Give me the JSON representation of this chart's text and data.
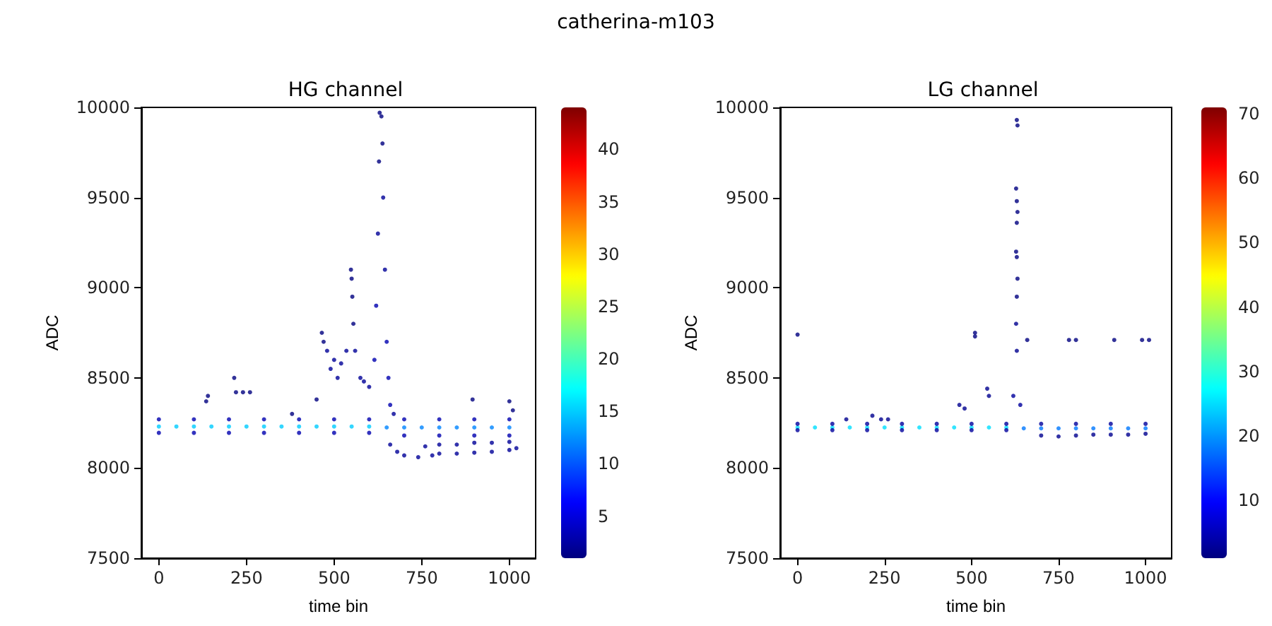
{
  "chart_data": [
    {
      "type": "scatter",
      "title": "HG channel",
      "annotations": [
        "catherina-m103"
      ],
      "xlabel": "time bin",
      "ylabel": "ADC",
      "xlim": [
        -50,
        1075
      ],
      "ylim": [
        7500,
        10000
      ],
      "xticks": [
        0,
        250,
        500,
        750,
        1000
      ],
      "yticks": [
        7500,
        8000,
        8500,
        9000,
        9500,
        10000
      ],
      "grid": false,
      "marker": "circle",
      "clim": [
        1,
        44
      ],
      "cticks": [
        5,
        10,
        15,
        20,
        25,
        30,
        35,
        40
      ],
      "x": [
        0,
        50,
        100,
        150,
        200,
        250,
        300,
        350,
        400,
        450,
        500,
        550,
        600,
        650,
        700,
        750,
        800,
        850,
        900,
        950,
        1000,
        0,
        100,
        200,
        300,
        400,
        500,
        600,
        700,
        800,
        900,
        1000,
        0,
        100,
        200,
        300,
        400,
        500,
        600,
        700,
        800,
        900,
        1000,
        660,
        680,
        700,
        740,
        780,
        800,
        850,
        900,
        950,
        1000,
        1020,
        760,
        800,
        850,
        900,
        950,
        1000,
        615,
        620,
        625,
        628,
        630,
        635,
        638,
        640,
        645,
        650,
        655,
        660,
        670,
        140,
        135,
        215,
        220,
        240,
        260,
        380,
        450,
        465,
        470,
        480,
        490,
        500,
        510,
        520,
        535,
        548,
        550,
        552,
        555,
        560,
        575,
        585,
        600,
        895,
        1000,
        1010
      ],
      "values": [
        8230,
        8230,
        8230,
        8230,
        8230,
        8230,
        8230,
        8230,
        8230,
        8230,
        8230,
        8230,
        8230,
        8225,
        8225,
        8225,
        8225,
        8225,
        8225,
        8225,
        8225,
        8270,
        8270,
        8270,
        8270,
        8270,
        8270,
        8270,
        8270,
        8270,
        8270,
        8270,
        8195,
        8195,
        8195,
        8195,
        8195,
        8195,
        8195,
        8180,
        8180,
        8180,
        8180,
        8130,
        8090,
        8070,
        8060,
        8070,
        8080,
        8080,
        8085,
        8090,
        8100,
        8110,
        8120,
        8130,
        8130,
        8140,
        8140,
        8145,
        8600,
        8900,
        9300,
        9700,
        9970,
        9950,
        9800,
        9500,
        9100,
        8700,
        8500,
        8350,
        8300,
        8400,
        8370,
        8500,
        8420,
        8420,
        8420,
        8300,
        8380,
        8750,
        8700,
        8650,
        8550,
        8600,
        8500,
        8580,
        8650,
        9100,
        9050,
        8950,
        8800,
        8650,
        8500,
        8480,
        8450,
        8380,
        8370,
        8320
      ],
      "cvalues": [
        15,
        15,
        15,
        15,
        15,
        15,
        15,
        15,
        15,
        15,
        15,
        15,
        15,
        12,
        12,
        12,
        12,
        12,
        12,
        12,
        12,
        3,
        3,
        3,
        3,
        3,
        3,
        3,
        3,
        3,
        3,
        3,
        3,
        3,
        3,
        3,
        3,
        3,
        3,
        3,
        3,
        3,
        3,
        2,
        2,
        2,
        2,
        2,
        2,
        2,
        2,
        2,
        2,
        2,
        2,
        2,
        2,
        2,
        2,
        2,
        3,
        3,
        2,
        1,
        1,
        1,
        1,
        2,
        2,
        3,
        3,
        3,
        2,
        1,
        1,
        1,
        1,
        1,
        1,
        1,
        1,
        1,
        1,
        2,
        2,
        2,
        2,
        2,
        2,
        1,
        1,
        1,
        1,
        2,
        2,
        2,
        2,
        1,
        1,
        1
      ]
    },
    {
      "type": "scatter",
      "title": "LG channel",
      "xlabel": "time bin",
      "ylabel": "ADC",
      "xlim": [
        -50,
        1075
      ],
      "ylim": [
        7500,
        10000
      ],
      "xticks": [
        0,
        250,
        500,
        750,
        1000
      ],
      "yticks": [
        7500,
        8000,
        8500,
        9000,
        9500,
        10000
      ],
      "grid": false,
      "marker": "circle",
      "clim": [
        1,
        71
      ],
      "cticks": [
        10,
        20,
        30,
        40,
        50,
        60,
        70
      ],
      "x": [
        0,
        50,
        100,
        150,
        200,
        250,
        300,
        350,
        400,
        450,
        500,
        550,
        600,
        650,
        700,
        750,
        800,
        850,
        900,
        950,
        1000,
        0,
        100,
        200,
        300,
        400,
        500,
        600,
        700,
        800,
        900,
        1000,
        0,
        100,
        200,
        300,
        400,
        500,
        600,
        700,
        750,
        800,
        850,
        900,
        950,
        1000,
        0,
        510,
        510,
        660,
        780,
        800,
        910,
        990,
        1010,
        630,
        632,
        628,
        630,
        632,
        630,
        628,
        630,
        632,
        630,
        628,
        630,
        620,
        640,
        140,
        215,
        240,
        260,
        465,
        480,
        545,
        550
      ],
      "values": [
        8225,
        8225,
        8225,
        8225,
        8225,
        8225,
        8225,
        8225,
        8225,
        8225,
        8225,
        8225,
        8225,
        8220,
        8220,
        8220,
        8220,
        8220,
        8220,
        8220,
        8220,
        8245,
        8245,
        8245,
        8245,
        8245,
        8245,
        8245,
        8245,
        8245,
        8245,
        8245,
        8210,
        8210,
        8210,
        8210,
        8210,
        8210,
        8210,
        8180,
        8175,
        8180,
        8185,
        8185,
        8185,
        8190,
        8740,
        8750,
        8730,
        8710,
        8710,
        8710,
        8710,
        8710,
        8710,
        9930,
        9900,
        9550,
        9480,
        9420,
        9360,
        9200,
        9170,
        9050,
        8950,
        8800,
        8650,
        8400,
        8350,
        8270,
        8290,
        8270,
        8270,
        8350,
        8330,
        8440,
        8400
      ],
      "cvalues": [
        25,
        25,
        25,
        25,
        25,
        25,
        25,
        25,
        25,
        25,
        25,
        25,
        25,
        18,
        18,
        18,
        18,
        18,
        18,
        18,
        18,
        3,
        3,
        3,
        3,
        3,
        3,
        3,
        3,
        3,
        3,
        3,
        3,
        3,
        3,
        3,
        3,
        3,
        3,
        2,
        2,
        2,
        2,
        2,
        2,
        2,
        1,
        1,
        1,
        1,
        1,
        1,
        1,
        1,
        1,
        1,
        1,
        1,
        1,
        1,
        1,
        1,
        1,
        1,
        1,
        2,
        2,
        3,
        3,
        2,
        2,
        2,
        2,
        2,
        2,
        2,
        2
      ]
    }
  ]
}
